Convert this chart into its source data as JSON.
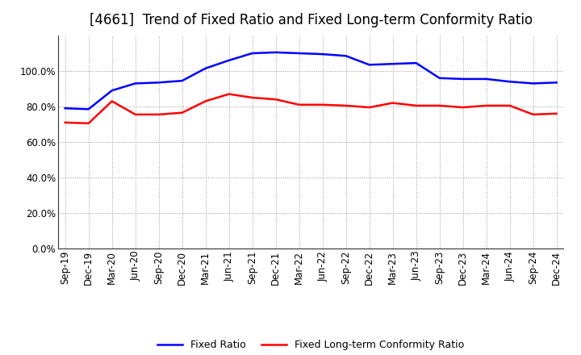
{
  "title": "[4661]  Trend of Fixed Ratio and Fixed Long-term Conformity Ratio",
  "x_labels": [
    "Sep-19",
    "Dec-19",
    "Mar-20",
    "Jun-20",
    "Sep-20",
    "Dec-20",
    "Mar-21",
    "Jun-21",
    "Sep-21",
    "Dec-21",
    "Mar-22",
    "Jun-22",
    "Sep-22",
    "Dec-22",
    "Mar-23",
    "Jun-23",
    "Sep-23",
    "Dec-23",
    "Mar-24",
    "Jun-24",
    "Sep-24",
    "Dec-24"
  ],
  "fixed_ratio": [
    79.0,
    78.5,
    89.0,
    93.0,
    93.5,
    94.5,
    101.5,
    106.0,
    110.0,
    110.5,
    110.0,
    109.5,
    108.5,
    103.5,
    104.0,
    104.5,
    96.0,
    95.5,
    95.5,
    94.0,
    93.0,
    93.5
  ],
  "fixed_lt_ratio": [
    71.0,
    70.5,
    83.0,
    75.5,
    75.5,
    76.5,
    83.0,
    87.0,
    85.0,
    84.0,
    81.0,
    81.0,
    80.5,
    79.5,
    82.0,
    80.5,
    80.5,
    79.5,
    80.5,
    80.5,
    75.5,
    76.0
  ],
  "fixed_ratio_color": "#0000FF",
  "fixed_lt_ratio_color": "#FF0000",
  "background_color": "#FFFFFF",
  "plot_bg_color": "#FFFFFF",
  "grid_color": "#999999",
  "ylim": [
    0,
    120
  ],
  "yticks": [
    0,
    20,
    40,
    60,
    80,
    100
  ],
  "legend_fixed_ratio": "Fixed Ratio",
  "legend_fixed_lt_ratio": "Fixed Long-term Conformity Ratio",
  "title_fontsize": 12,
  "tick_fontsize": 8.5
}
